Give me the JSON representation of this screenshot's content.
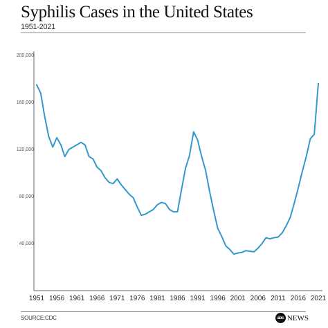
{
  "header": {
    "title": "Syphilis Cases in the United States",
    "subtitle": "1951-2021"
  },
  "footer": {
    "source": "SOURCE:CDC",
    "logo_mark": "abc",
    "logo_word": "NEWS"
  },
  "chart_data": {
    "type": "line",
    "title": "Syphilis Cases in the United States",
    "subtitle": "1951-2021",
    "xlabel": "",
    "ylabel": "",
    "xlim": [
      1951,
      2021
    ],
    "ylim": [
      0,
      200000
    ],
    "x_ticks": [
      "1951",
      "1956",
      "1961",
      "1966",
      "1971",
      "1976",
      "1981",
      "1986",
      "1991",
      "1996",
      "2001",
      "2006",
      "2011",
      "2016",
      "2021"
    ],
    "y_ticks": [
      "40,000",
      "80,000",
      "120,000",
      "160,000",
      "200,000"
    ],
    "y_tick_values": [
      40000,
      80000,
      120000,
      160000,
      200000
    ],
    "grid": false,
    "color": "#3399cc",
    "series": [
      {
        "x": [
          1951,
          1952,
          1953,
          1954,
          1955,
          1956,
          1957,
          1958,
          1959,
          1960,
          1961,
          1962,
          1963,
          1964,
          1965,
          1966,
          1967,
          1968,
          1969,
          1970,
          1971,
          1972,
          1973,
          1974,
          1975,
          1976,
          1977,
          1978,
          1979,
          1980,
          1981,
          1982,
          1983,
          1984,
          1985,
          1986,
          1987,
          1988,
          1989,
          1990,
          1991,
          1992,
          1993,
          1994,
          1995,
          1996,
          1997,
          1998,
          1999,
          2000,
          2001,
          2002,
          2003,
          2004,
          2005,
          2006,
          2007,
          2008,
          2009,
          2010,
          2011,
          2012,
          2013,
          2014,
          2015,
          2016,
          2017,
          2018,
          2019,
          2020,
          2021
        ],
        "values": [
          175000,
          168000,
          148000,
          131000,
          122000,
          130000,
          124000,
          114000,
          120000,
          122000,
          124000,
          126000,
          124000,
          114000,
          112000,
          105000,
          102000,
          96000,
          92000,
          91000,
          95000,
          90000,
          86000,
          82000,
          79000,
          71000,
          64000,
          65000,
          67000,
          69000,
          73000,
          75000,
          74000,
          69000,
          67000,
          67000,
          86000,
          104000,
          115000,
          135000,
          128000,
          114000,
          102000,
          84000,
          68000,
          53000,
          46000,
          38000,
          35000,
          31000,
          32000,
          32500,
          34000,
          33500,
          33000,
          36000,
          40000,
          45000,
          44000,
          45000,
          45500,
          49000,
          55000,
          62000,
          74000,
          87000,
          101000,
          114000,
          129000,
          133000,
          176000
        ]
      }
    ]
  }
}
